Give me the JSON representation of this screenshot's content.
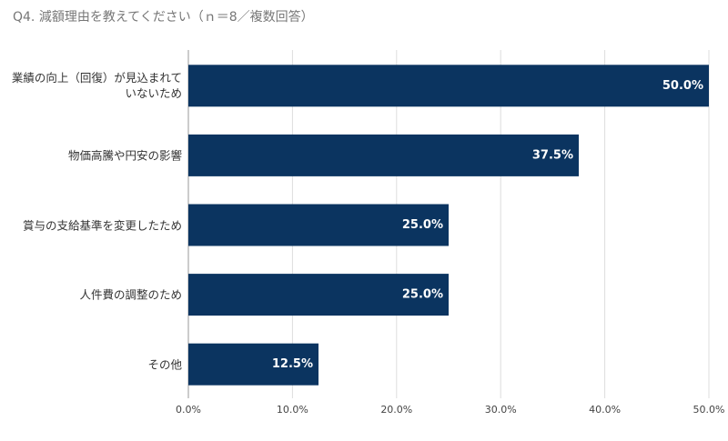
{
  "chart_data": {
    "type": "bar",
    "orientation": "horizontal",
    "title": "Q4. 減額理由を教えてください（ｎ＝8／複数回答）",
    "categories": [
      "業績の向上（回復）が見込まれていないため",
      "物価高騰や円安の影響",
      "賞与の支給基準を変更したため",
      "人件費の調整のため",
      "その他"
    ],
    "values": [
      50,
      37.5,
      25,
      25,
      12.5
    ],
    "value_labels": [
      "50.0%",
      "37.5%",
      "25.0%",
      "25.0%",
      "12.5%"
    ],
    "color": "#0b3460",
    "xlim": [
      0,
      50
    ],
    "xticks": [
      {
        "value": 0,
        "label": "0.0%"
      },
      {
        "value": 10,
        "label": "10.0%"
      },
      {
        "value": 20,
        "label": "20.0%"
      },
      {
        "value": 30,
        "label": "30.0%"
      },
      {
        "value": 40,
        "label": "40.0%"
      },
      {
        "value": 50,
        "label": "50.0%"
      }
    ],
    "grid": true
  }
}
